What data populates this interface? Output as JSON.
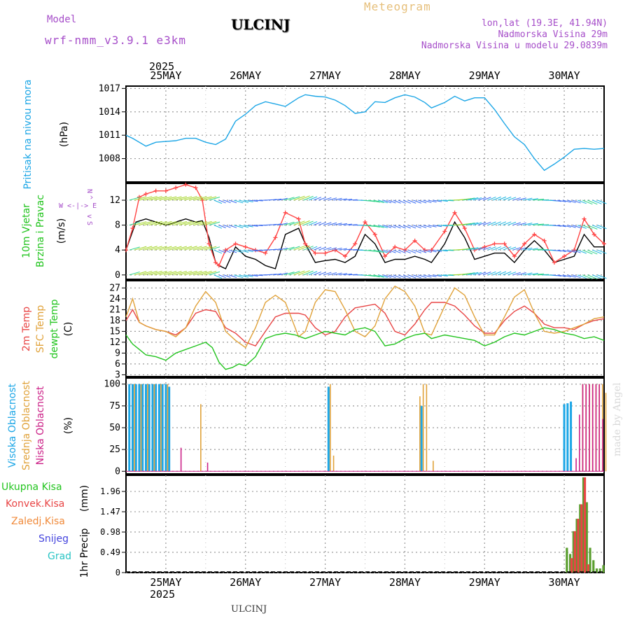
{
  "header": {
    "model_label": "Model",
    "model_name": "wrf-nmm_v3.9.1 e3km",
    "station": "ULCINJ",
    "meteogram": "Meteogram",
    "lonlat": "lon,lat (19.3E, 41.94N)",
    "altitude": "Nadmorska Visina 29m",
    "model_altitude": "Nadmorska Visina u modelu 29.0839m",
    "credit": "made by Angel",
    "footer": "ULCINJ"
  },
  "colors": {
    "pressure": "#1ca6e6",
    "temp2m": "#e84545",
    "sfc": "#e0a23a",
    "dew": "#22c41e",
    "high_cloud": "#1ca6e6",
    "mid_cloud": "#e0a23a",
    "low_cloud": "#cc2288",
    "total_precip": "#5a9e2e",
    "conv_precip": "#e84545",
    "frozen": "#f08a3a",
    "snow": "#4444dd",
    "hail": "#29c4c4",
    "speed": "#000000",
    "gust": "#ff4444"
  },
  "x_axis": {
    "top_year": "2025",
    "bottom_year": "2025",
    "days": [
      "25MAY",
      "26MAY",
      "27MAY",
      "28MAY",
      "29MAY",
      "30MAY"
    ],
    "range_hours": [
      -12,
      132
    ]
  },
  "chart_data": [
    {
      "type": "line",
      "name": "pressure",
      "ylabel": "Pritisak na nivou mora",
      "unit": "(hPa)",
      "yticks": [
        1008,
        1011,
        1014,
        1017
      ],
      "ylim": [
        1005,
        1017.3
      ],
      "grid": true,
      "series": [
        {
          "name": "",
          "color_key": "pressure",
          "x": [
            -12,
            -10,
            -6,
            -3,
            0,
            3,
            6,
            9,
            12,
            15,
            18,
            21,
            24,
            27,
            30,
            33,
            36,
            40,
            42,
            45,
            48,
            51,
            54,
            57,
            60,
            63,
            66,
            69,
            72,
            75,
            78,
            80,
            84,
            87,
            90,
            93,
            96,
            99,
            102,
            105,
            108,
            111,
            114,
            117,
            120,
            123,
            126,
            129,
            132
          ],
          "y": [
            1011,
            1010.6,
            1009.6,
            1010.1,
            1010.2,
            1010.3,
            1010.6,
            1010.6,
            1010.1,
            1009.8,
            1010.5,
            1012.8,
            1013.7,
            1014.8,
            1015.3,
            1015,
            1014.7,
            1015.8,
            1016.2,
            1016,
            1015.9,
            1015.5,
            1014.8,
            1013.8,
            1014,
            1015.3,
            1015.2,
            1015.8,
            1016.2,
            1015.9,
            1015.2,
            1014.5,
            1015.2,
            1016,
            1015.4,
            1015.8,
            1015.8,
            1014.3,
            1012.5,
            1010.8,
            1009.8,
            1008,
            1006.5,
            1007.3,
            1008.2,
            1009.2,
            1009.3,
            1009.2,
            1009.3
          ]
        }
      ]
    },
    {
      "type": "line",
      "name": "wind",
      "ylabel": "10m Vjetar",
      "ylabel2": "Brzina i Pravac",
      "unit": "(m/s)",
      "dir_legend": [
        "N",
        "^",
        "W <-|-> E",
        "v",
        "S"
      ],
      "yticks": [
        0,
        4,
        8,
        12
      ],
      "ylim": [
        -0.7,
        14.7
      ],
      "grid": true,
      "series": [
        {
          "name": "",
          "color_key": "speed",
          "x": [
            -12,
            -9,
            -6,
            -3,
            0,
            3,
            6,
            9,
            11,
            13,
            15,
            16,
            18,
            21,
            24,
            27,
            30,
            33,
            36,
            40,
            42,
            45,
            48,
            51,
            54,
            57,
            60,
            63,
            66,
            69,
            72,
            75,
            78,
            80,
            84,
            87,
            90,
            93,
            96,
            99,
            102,
            105,
            108,
            111,
            114,
            117,
            120,
            123,
            126,
            129,
            132
          ],
          "y": [
            4,
            8.5,
            9,
            8.5,
            8,
            8.5,
            9,
            8.5,
            8.7,
            6,
            2,
            1.5,
            1,
            4.5,
            3,
            2.5,
            1.5,
            1,
            6.5,
            7.5,
            5,
            2,
            2.3,
            2.5,
            2,
            3,
            6.5,
            5,
            2,
            2.5,
            2.5,
            3,
            2.5,
            2,
            5,
            8.5,
            6,
            2.5,
            3,
            3.5,
            3.5,
            2,
            4,
            5.5,
            4,
            2,
            2.5,
            3,
            6.5,
            4.5,
            4.5
          ]
        },
        {
          "name": "",
          "color_key": "gust",
          "x": [
            -12,
            -10,
            -8,
            -6,
            -3,
            0,
            3,
            6,
            9,
            11,
            13,
            15,
            16,
            18,
            21,
            24,
            27,
            30,
            33,
            36,
            40,
            42,
            45,
            48,
            51,
            54,
            57,
            60,
            63,
            66,
            69,
            72,
            75,
            78,
            80,
            84,
            87,
            90,
            93,
            96,
            99,
            102,
            105,
            108,
            111,
            114,
            117,
            120,
            123,
            126,
            129,
            132
          ],
          "y": [
            4,
            7.5,
            12.5,
            13,
            13.5,
            13.5,
            14,
            14.5,
            14,
            12,
            5,
            2,
            1.5,
            4,
            5,
            4.5,
            4,
            3.5,
            6,
            10,
            9,
            5,
            3.5,
            3.5,
            4,
            3,
            5,
            8.5,
            6.5,
            3,
            4.5,
            4,
            5.5,
            4,
            4,
            7,
            10,
            7.5,
            4,
            4.5,
            5,
            5,
            3,
            5,
            6.5,
            5.5,
            2,
            3,
            4,
            9,
            6.5,
            5
          ]
        }
      ]
    },
    {
      "type": "line",
      "name": "temperature",
      "ylabel": "2m Temp",
      "ylabel2": "SFC Temp",
      "ylabel3": "dewpt Temp",
      "unit": "(C)",
      "yticks": [
        3,
        6,
        9,
        12,
        15,
        18,
        21,
        24,
        27
      ],
      "ylim": [
        2.5,
        29
      ],
      "grid": true,
      "series": [
        {
          "name": "",
          "color_key": "temp2m",
          "x": [
            -12,
            -10,
            -8,
            -6,
            -3,
            0,
            3,
            6,
            9,
            12,
            15,
            18,
            21,
            24,
            27,
            30,
            33,
            36,
            40,
            42,
            45,
            48,
            51,
            54,
            57,
            60,
            63,
            66,
            69,
            72,
            75,
            78,
            80,
            84,
            87,
            90,
            93,
            96,
            99,
            102,
            105,
            108,
            111,
            114,
            117,
            120,
            123,
            126,
            129,
            132
          ],
          "y": [
            18,
            21,
            17.5,
            16.5,
            15.5,
            15,
            14,
            16,
            20,
            21,
            20.5,
            16,
            14.5,
            12,
            11,
            15,
            19,
            20,
            20,
            19.5,
            16,
            14,
            15,
            19,
            21.5,
            22,
            22.5,
            20,
            15,
            14,
            17,
            21,
            23,
            23,
            22,
            19.5,
            16.5,
            14.5,
            14.5,
            18,
            20.5,
            22,
            20,
            17,
            16,
            16,
            15.5,
            17,
            18,
            18.5
          ]
        },
        {
          "name": "",
          "color_key": "sfc",
          "x": [
            -12,
            -10,
            -8,
            -6,
            -3,
            0,
            3,
            6,
            9,
            12,
            15,
            18,
            21,
            24,
            27,
            30,
            33,
            36,
            40,
            42,
            45,
            48,
            51,
            54,
            57,
            60,
            63,
            66,
            69,
            72,
            75,
            78,
            80,
            84,
            87,
            90,
            93,
            96,
            99,
            102,
            105,
            108,
            111,
            114,
            117,
            120,
            123,
            126,
            129,
            132
          ],
          "y": [
            19,
            24,
            17.5,
            16.5,
            15.5,
            15,
            13.5,
            16,
            22,
            26,
            23,
            15,
            12.5,
            10.5,
            16,
            23,
            25,
            23,
            13.5,
            15,
            23,
            26.5,
            26,
            21,
            15,
            13.5,
            16.5,
            24,
            27.5,
            26,
            22,
            14.5,
            14,
            22,
            27,
            25,
            19,
            14,
            14,
            19,
            24.5,
            26.5,
            20,
            15,
            14.5,
            15,
            16,
            17,
            18.5,
            19
          ]
        },
        {
          "name": "",
          "color_key": "dew",
          "x": [
            -12,
            -10,
            -8,
            -6,
            -3,
            0,
            3,
            6,
            9,
            12,
            14,
            16,
            18,
            20,
            22,
            24,
            27,
            30,
            33,
            36,
            39,
            42,
            45,
            48,
            51,
            54,
            57,
            60,
            63,
            66,
            69,
            72,
            75,
            78,
            80,
            84,
            87,
            90,
            93,
            96,
            99,
            102,
            105,
            108,
            111,
            114,
            117,
            120,
            123,
            126,
            129,
            132
          ],
          "y": [
            14,
            11.5,
            10,
            8.5,
            8,
            7,
            9,
            10,
            11,
            12,
            10.5,
            6.5,
            4.5,
            5,
            6,
            5.5,
            8,
            13,
            14,
            14.5,
            14,
            13,
            14,
            15,
            14.5,
            14,
            15.5,
            16,
            15,
            11,
            11.5,
            13,
            14,
            14.5,
            13,
            14,
            13.5,
            13,
            12.5,
            11,
            12,
            13.5,
            14.5,
            14,
            15,
            16,
            15.5,
            14.5,
            14,
            13,
            13.5,
            12.5
          ]
        }
      ]
    },
    {
      "type": "bar",
      "name": "clouds",
      "ylabel": "Visoka Oblacnost",
      "ylabel2": "Srednja Oblacnost",
      "ylabel3": "Niska Oblacnost",
      "unit": "(%)",
      "yticks": [
        0,
        25,
        50,
        75,
        100
      ],
      "ylim": [
        -3,
        107
      ],
      "grid": true,
      "series": [
        {
          "name": "",
          "color_key": "high_cloud",
          "x": [
            -11,
            -10,
            -9,
            -8,
            -7,
            -6,
            -5,
            -4,
            -3,
            -2,
            -1,
            0,
            1,
            49,
            77,
            120,
            121,
            122
          ],
          "y": [
            100,
            100,
            100,
            100,
            100,
            100,
            100,
            100,
            100,
            100,
            100,
            100,
            97,
            97,
            75,
            77,
            78,
            80
          ]
        },
        {
          "name": "",
          "color_key": "mid_cloud",
          "x": [
            -10,
            -8,
            -6,
            -4,
            -2,
            0,
            10,
            49,
            50,
            76,
            77,
            78,
            80,
            125,
            126,
            127,
            128,
            129,
            130,
            131,
            132
          ],
          "y": [
            100,
            100,
            100,
            100,
            100,
            100,
            77,
            100,
            18,
            86,
            100,
            100,
            12,
            100,
            100,
            100,
            100,
            100,
            100,
            100,
            90
          ]
        },
        {
          "name": "",
          "color_key": "low_cloud",
          "x": [
            5,
            13,
            124,
            125,
            126,
            127,
            128,
            129,
            130,
            131,
            132
          ],
          "y": [
            27,
            10,
            15,
            65,
            100,
            100,
            100,
            100,
            100,
            100,
            60
          ]
        }
      ]
    },
    {
      "type": "bar",
      "name": "precipitation",
      "ylabel": "1hr Precip",
      "unit": "(mm)",
      "legend": [
        "Ukupna Kisa",
        "Konvek.Kisa",
        "Zaledj.Kisa",
        "Snijeg",
        "Grad"
      ],
      "yticks": [
        0,
        0.49,
        0.98,
        1.47,
        1.96
      ],
      "ylim": [
        0,
        2.35
      ],
      "grid": true,
      "series": [
        {
          "name": "Ukupna Kisa",
          "color_key": "total_precip",
          "x": [
            121,
            122,
            123,
            124,
            125,
            126,
            127,
            128,
            129,
            130,
            131,
            132
          ],
          "y": [
            0.6,
            0.45,
            1.0,
            1.3,
            1.65,
            2.3,
            1.7,
            0.6,
            0.3,
            0.1,
            0.1,
            0.18
          ]
        },
        {
          "name": "Konvek.Kisa",
          "color_key": "conv_precip",
          "x": [
            122,
            123,
            124,
            125,
            126,
            127
          ],
          "y": [
            0.35,
            1.0,
            1.3,
            1.65,
            2.3,
            0.2
          ]
        },
        {
          "name": "Zaledj.Kisa",
          "color_key": "frozen",
          "x": [],
          "y": []
        },
        {
          "name": "Snijeg",
          "color_key": "snow",
          "x": [],
          "y": []
        },
        {
          "name": "Grad",
          "color_key": "hail",
          "x": [],
          "y": []
        }
      ]
    }
  ]
}
